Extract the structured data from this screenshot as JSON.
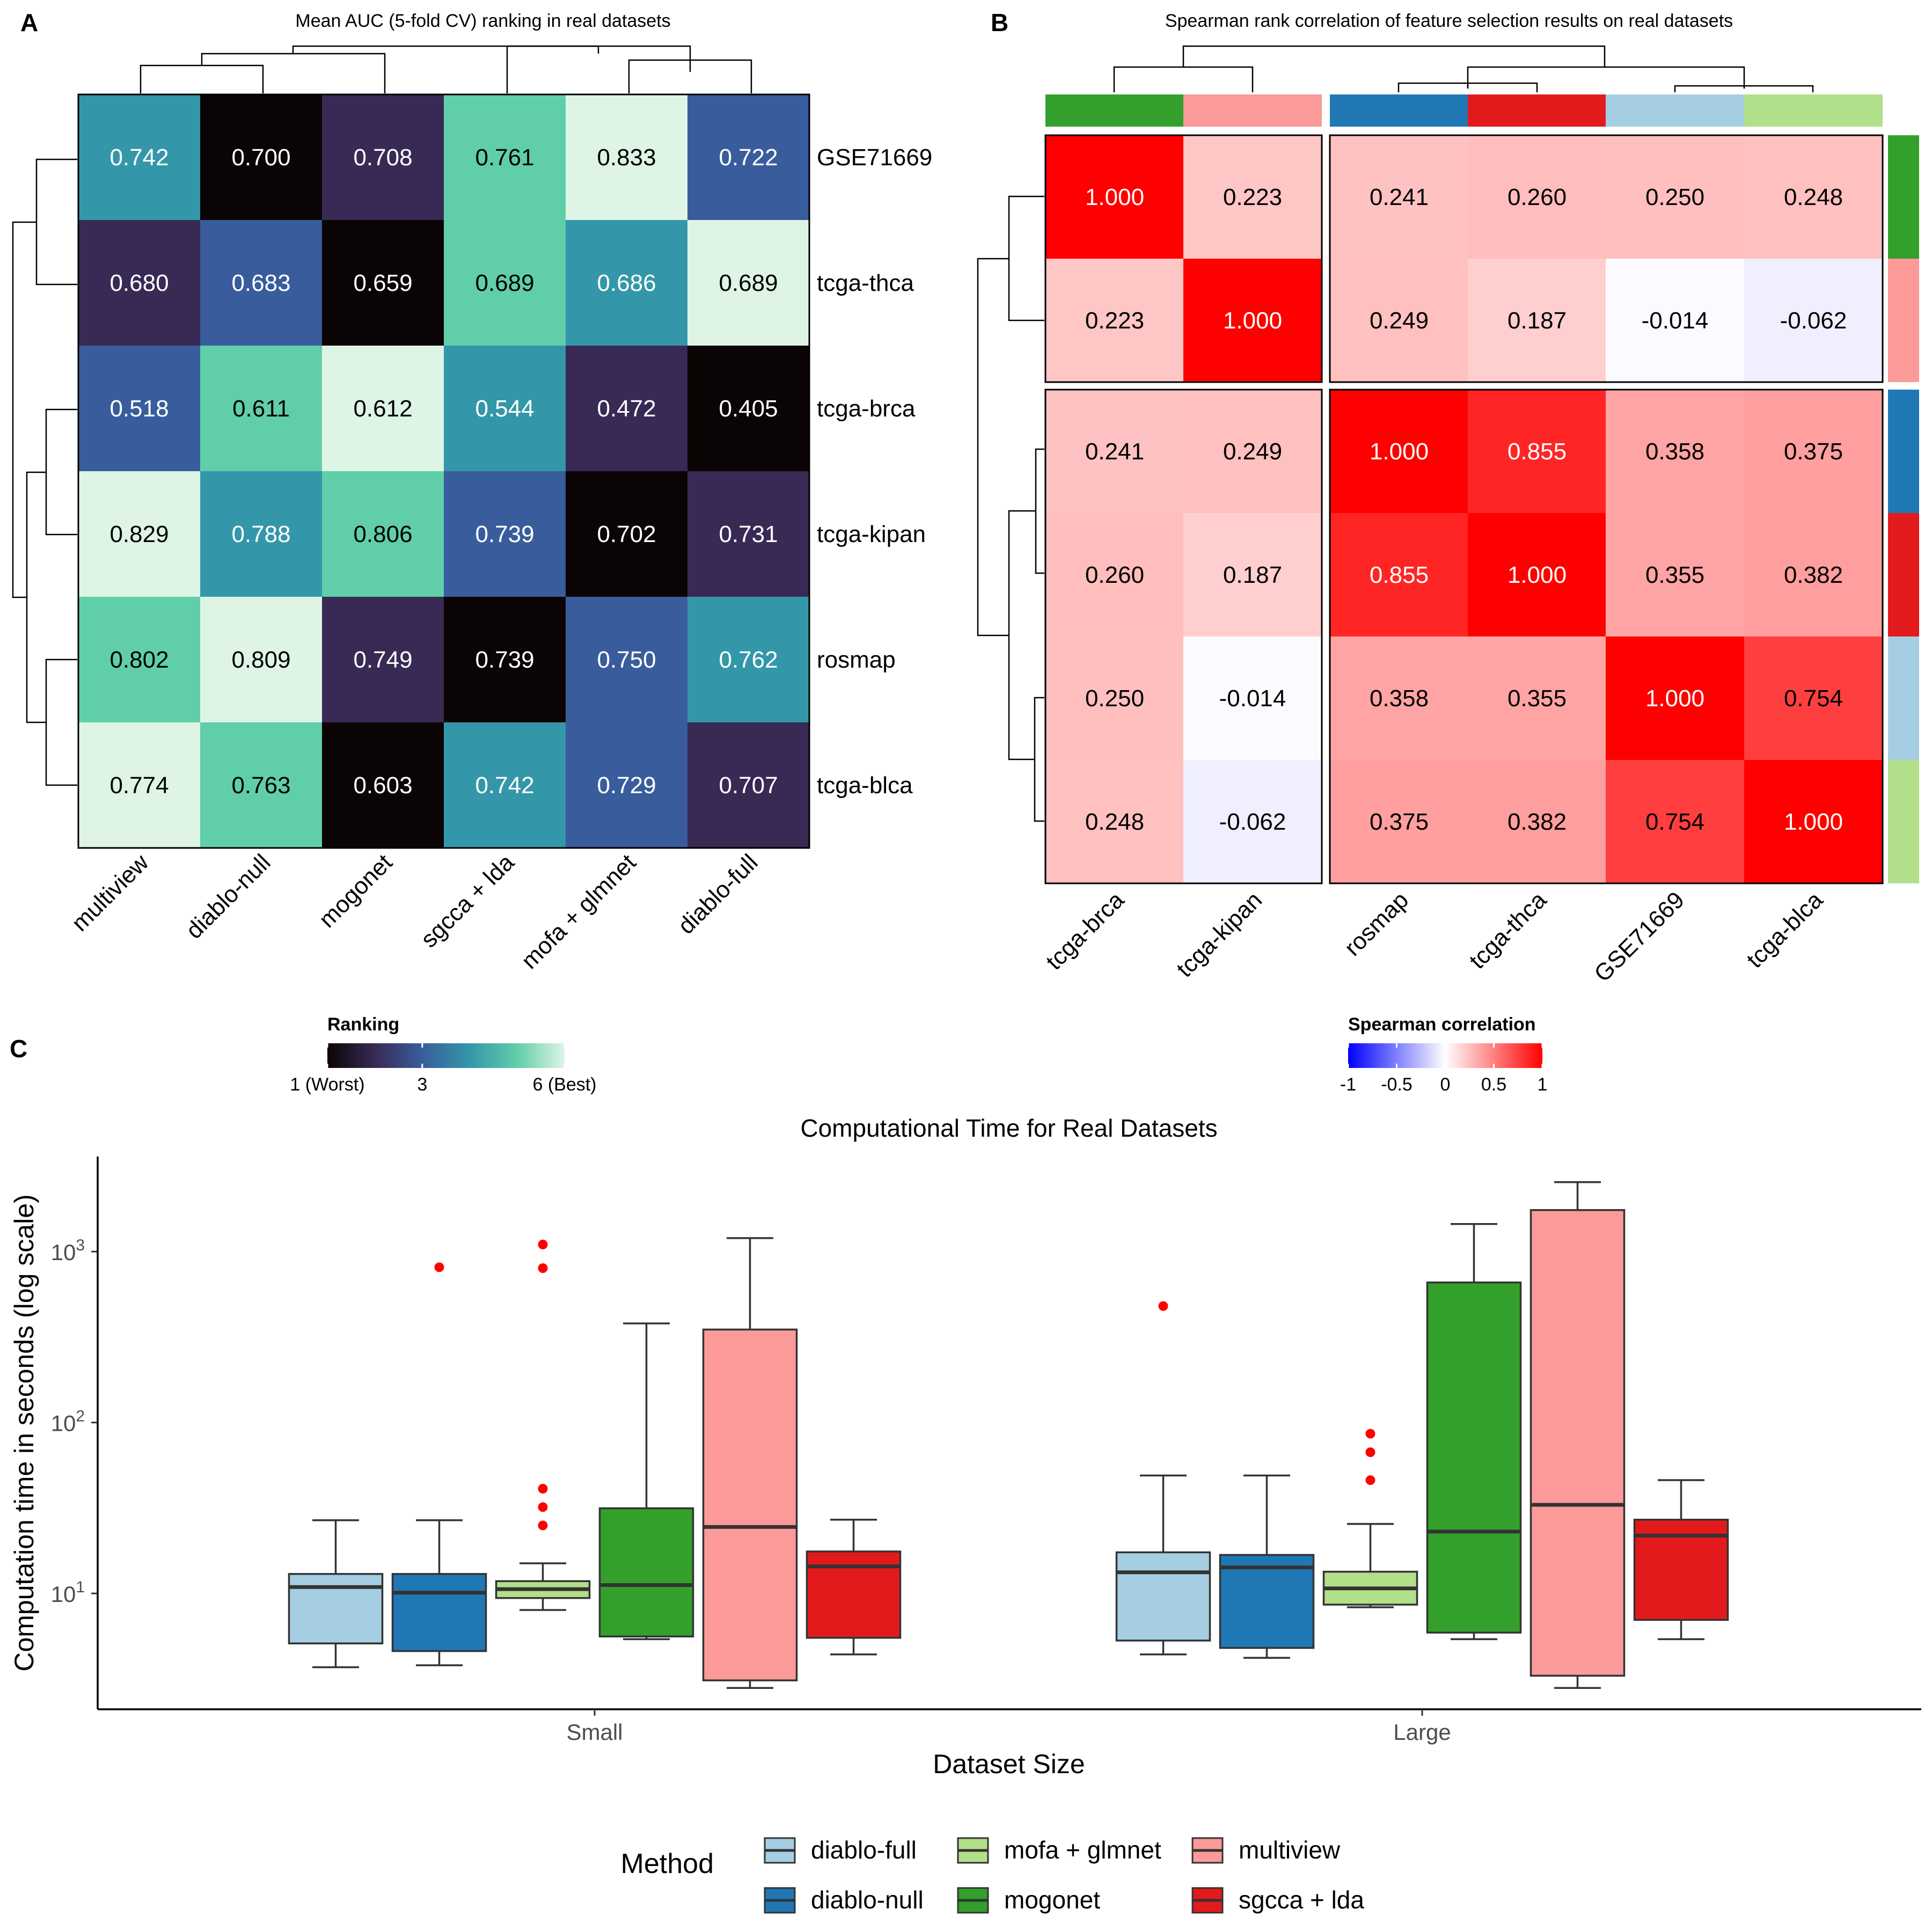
{
  "panel_labels": {
    "a": "A",
    "b": "B",
    "c": "C"
  },
  "chart_data": [
    {
      "type": "heatmap",
      "panel": "A",
      "title": "Mean AUC (5-fold CV) ranking in real datasets",
      "columns": [
        "multiview",
        "diablo-null",
        "mogonet",
        "sgcca + lda",
        "mofa + glmnet",
        "diablo-full"
      ],
      "rows": [
        "GSE71669",
        "tcga-thca",
        "tcga-brca",
        "tcga-kipan",
        "rosmap",
        "tcga-blca"
      ],
      "values": [
        [
          0.742,
          0.7,
          0.708,
          0.761,
          0.833,
          0.722
        ],
        [
          0.68,
          0.683,
          0.659,
          0.689,
          0.686,
          0.689
        ],
        [
          0.518,
          0.611,
          0.612,
          0.544,
          0.472,
          0.405
        ],
        [
          0.829,
          0.788,
          0.806,
          0.739,
          0.702,
          0.731
        ],
        [
          0.802,
          0.809,
          0.749,
          0.739,
          0.75,
          0.762
        ],
        [
          0.774,
          0.763,
          0.603,
          0.742,
          0.729,
          0.707
        ]
      ],
      "ranking": [
        [
          4,
          1,
          2,
          5,
          6,
          3
        ],
        [
          2,
          3,
          1,
          5,
          4,
          6
        ],
        [
          3,
          5,
          6,
          4,
          2,
          1
        ],
        [
          6,
          4,
          5,
          3,
          1,
          2
        ],
        [
          5,
          6,
          2,
          1,
          3,
          4
        ],
        [
          6,
          5,
          1,
          4,
          3,
          2
        ]
      ],
      "legend": {
        "title": "Ranking",
        "ticks": [
          "1 (Worst)",
          "3",
          "6 (Best)"
        ],
        "tick_values": [
          1,
          3,
          6
        ],
        "range": [
          1,
          6
        ],
        "colors": [
          "#0b0405",
          "#382a54",
          "#395d9c",
          "#3497a9",
          "#60cea9",
          "#def5e5"
        ]
      },
      "dendrogram": "top and left"
    },
    {
      "type": "heatmap",
      "panel": "B",
      "title": "Spearman rank correlation of feature selection results on real datasets",
      "labels": [
        "tcga-brca",
        "tcga-kipan",
        "rosmap",
        "tcga-thca",
        "GSE71669",
        "tcga-blca"
      ],
      "annotation_colors": [
        "#33a02c",
        "#fb9a99",
        "#1f78b4",
        "#e31a1c",
        "#a6cee3",
        "#b2df8a"
      ],
      "values": [
        [
          1.0,
          0.223,
          0.241,
          0.26,
          0.25,
          0.248
        ],
        [
          0.223,
          1.0,
          0.249,
          0.187,
          -0.014,
          -0.062
        ],
        [
          0.241,
          0.249,
          1.0,
          0.855,
          0.358,
          0.375
        ],
        [
          0.26,
          0.187,
          0.855,
          1.0,
          0.355,
          0.382
        ],
        [
          0.25,
          -0.014,
          0.358,
          0.355,
          1.0,
          0.754
        ],
        [
          0.248,
          -0.062,
          0.375,
          0.382,
          0.754,
          1.0
        ]
      ],
      "split": [
        2,
        4
      ],
      "legend": {
        "title": "Spearman correlation",
        "ticks": [
          "-1",
          "-0.5",
          "0",
          "0.5",
          "1"
        ],
        "tick_values": [
          -1,
          -0.5,
          0,
          0.5,
          1
        ],
        "colors": [
          "#0000ff",
          "#ffffff",
          "#ff0000"
        ]
      },
      "dendrogram": "top and left"
    },
    {
      "type": "box",
      "panel": "C",
      "title": "Computational Time for Real Datasets",
      "xlabel": "Dataset Size",
      "ylabel": "Computation time in seconds (log scale)",
      "yscale": "log10",
      "ylim": [
        2.1,
        3600
      ],
      "y_ticks": [
        10,
        100,
        1000
      ],
      "y_tick_labels": [
        {
          "base": "10",
          "exp": "1"
        },
        {
          "base": "10",
          "exp": "2"
        },
        {
          "base": "10",
          "exp": "3"
        }
      ],
      "categories": [
        "Small",
        "Large"
      ],
      "outlier_color": "#ff0000",
      "legend": {
        "title": "Method",
        "items": [
          "diablo-full",
          "diablo-null",
          "mofa + glmnet",
          "mogonet",
          "multiview",
          "sgcca + lda"
        ]
      },
      "series": [
        {
          "name": "diablo-full",
          "color": "#a6cee3",
          "boxes": [
            {
              "category": "Small",
              "min": 3.7,
              "q1": 5.1,
              "median": 10.9,
              "q3": 13.0,
              "max": 26.8,
              "outliers": []
            },
            {
              "category": "Large",
              "min": 4.4,
              "q1": 5.3,
              "median": 13.3,
              "q3": 17.4,
              "max": 49.0,
              "outliers": [
                480
              ]
            }
          ]
        },
        {
          "name": "diablo-null",
          "color": "#1f78b4",
          "boxes": [
            {
              "category": "Small",
              "min": 3.8,
              "q1": 4.6,
              "median": 10.1,
              "q3": 13.0,
              "max": 26.8,
              "outliers": [
                810
              ]
            },
            {
              "category": "Large",
              "min": 4.2,
              "q1": 4.8,
              "median": 14.2,
              "q3": 16.8,
              "max": 49.0,
              "outliers": []
            }
          ]
        },
        {
          "name": "mofa + glmnet",
          "color": "#b2df8a",
          "boxes": [
            {
              "category": "Small",
              "min": 8.0,
              "q1": 9.4,
              "median": 10.6,
              "q3": 11.8,
              "max": 15.0,
              "outliers": [
                25,
                32,
                41,
                800,
                1100
              ]
            },
            {
              "category": "Large",
              "min": 8.3,
              "q1": 8.6,
              "median": 10.7,
              "q3": 13.4,
              "max": 25.5,
              "outliers": [
                46,
                67,
                86
              ]
            }
          ]
        },
        {
          "name": "mogonet",
          "color": "#33a02c",
          "boxes": [
            {
              "category": "Small",
              "min": 5.4,
              "q1": 5.6,
              "median": 11.2,
              "q3": 31.5,
              "max": 380,
              "outliers": []
            },
            {
              "category": "Large",
              "min": 5.4,
              "q1": 5.9,
              "median": 23.0,
              "q3": 660,
              "max": 1450,
              "outliers": []
            }
          ]
        },
        {
          "name": "multiview",
          "color": "#fb9a99",
          "boxes": [
            {
              "category": "Small",
              "min": 2.8,
              "q1": 3.1,
              "median": 24.5,
              "q3": 350,
              "max": 1200,
              "outliers": []
            },
            {
              "category": "Large",
              "min": 2.8,
              "q1": 3.3,
              "median": 33.0,
              "q3": 1750,
              "max": 2550,
              "outliers": []
            }
          ]
        },
        {
          "name": "sgcca + lda",
          "color": "#e31a1c",
          "boxes": [
            {
              "category": "Small",
              "min": 4.4,
              "q1": 5.5,
              "median": 14.4,
              "q3": 17.6,
              "max": 27.0,
              "outliers": []
            },
            {
              "category": "Large",
              "min": 5.4,
              "q1": 7.0,
              "median": 21.8,
              "q3": 27.0,
              "max": 46.0,
              "outliers": []
            }
          ]
        }
      ]
    }
  ]
}
